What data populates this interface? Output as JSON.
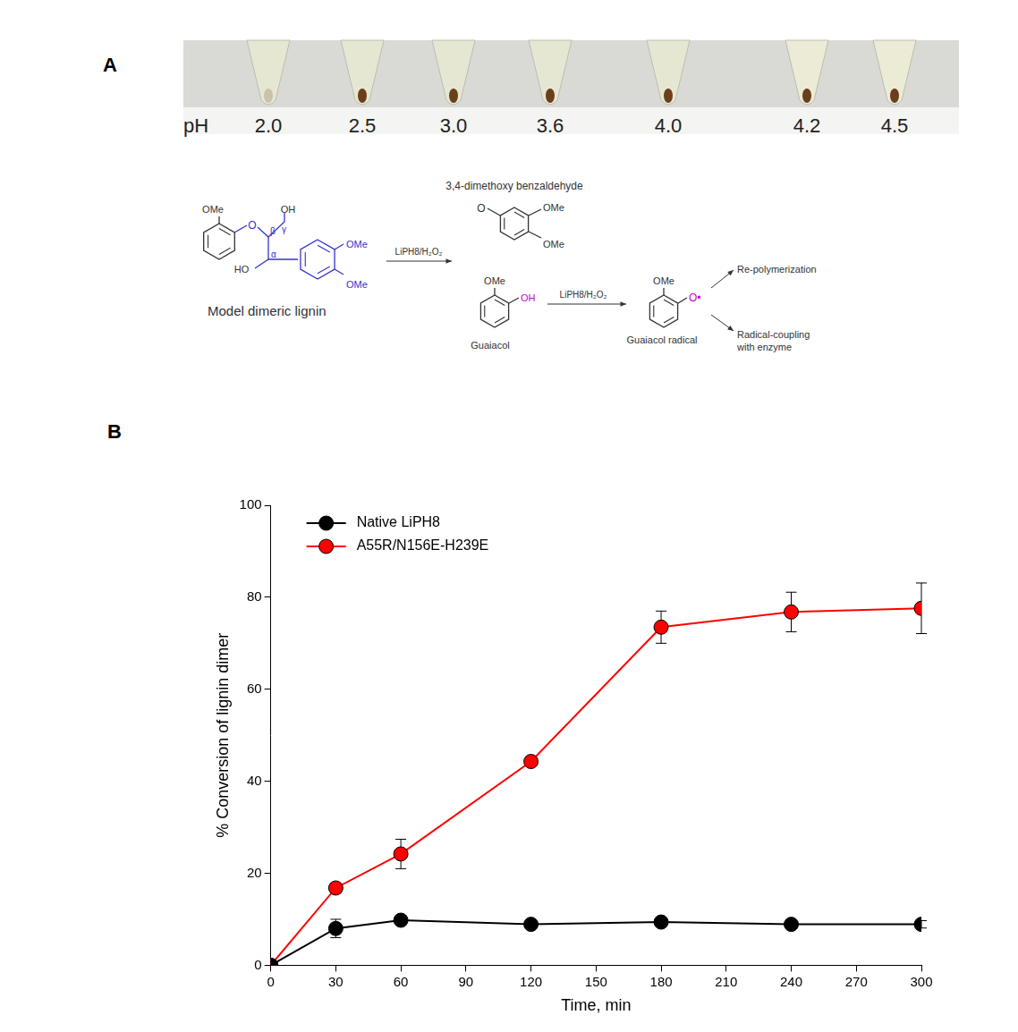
{
  "panel_a": {
    "label": "A",
    "tubes": {
      "axis_label": "pH",
      "ph": [
        "2.0",
        "2.5",
        "3.0",
        "3.6",
        "4.0",
        "4.2",
        "4.5"
      ]
    },
    "scheme": {
      "methoxy": "OMe",
      "hydroxyl": "OH",
      "hydroxyl_left": "HO",
      "ether_o": "O",
      "beta": "β",
      "alpha": "α",
      "gamma": "γ",
      "substrate": "Model dimeric lignin",
      "reagent": "LiPH8/H₂O₂",
      "product_1": "3,4-dimethoxy benzaldehyde",
      "product_2": "Guaiacol",
      "radical_o": "O•",
      "radical": "Guaiacol radical",
      "fate_1": "Re-polymerization",
      "fate_2_line_1": "Radical-coupling",
      "fate_2_line_2": "with enzyme"
    }
  },
  "panel_b": {
    "label": "B"
  },
  "chart_data": {
    "type": "line",
    "x_label": "Time, min",
    "y_label": "% Conversion of lignin dimer",
    "x": [
      0,
      30,
      60,
      120,
      180,
      240,
      300
    ],
    "xlim": [
      0,
      300
    ],
    "xticks": [
      0,
      30,
      60,
      90,
      120,
      150,
      180,
      210,
      240,
      270,
      300
    ],
    "ylim": [
      0,
      100
    ],
    "yticks": [
      0,
      20,
      40,
      60,
      80,
      100
    ],
    "grid": false,
    "legend": "upper left",
    "marker": "circle",
    "series": [
      {
        "name": "Native LiPH8",
        "color": "#000000",
        "values": [
          0,
          8,
          9.8,
          8.9,
          9.4,
          8.9,
          8.9
        ],
        "errors": [
          0,
          2,
          1,
          0.8,
          0.8,
          0.8,
          0.8
        ]
      },
      {
        "name": "A55R/N156E-H239E",
        "color": "#ff0000",
        "values": [
          0,
          16.8,
          24.2,
          44.3,
          73.5,
          76.8,
          77.6
        ],
        "errors": [
          0,
          1,
          3.2,
          1,
          3.5,
          4.3,
          5.5
        ]
      }
    ]
  }
}
